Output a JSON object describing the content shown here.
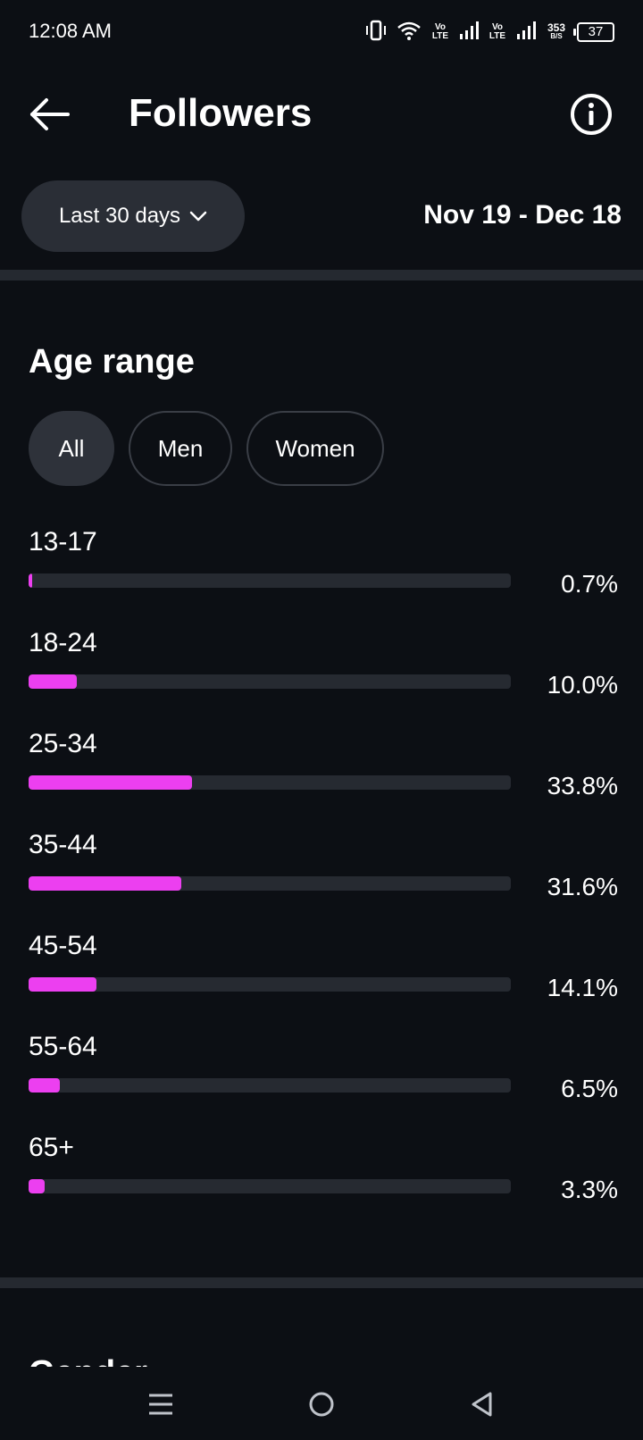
{
  "status_bar": {
    "time": "12:08 AM",
    "sim1_label": "Vo LTE",
    "sim2_label": "Vo LTE",
    "speed_value": "353",
    "speed_unit": "B/S",
    "battery": "37"
  },
  "header": {
    "title": "Followers",
    "back_icon": "arrow-left-icon",
    "info_icon": "info-icon"
  },
  "date_filter": {
    "selected": "Last 30 days",
    "range": "Nov 19 - Dec 18"
  },
  "age_section": {
    "title": "Age range",
    "filters": [
      {
        "label": "All",
        "active": true
      },
      {
        "label": "Men",
        "active": false
      },
      {
        "label": "Women",
        "active": false
      }
    ],
    "rows": [
      {
        "label": "13-17",
        "value": "0.7%",
        "percent": 0.7
      },
      {
        "label": "18-24",
        "value": "10.0%",
        "percent": 10.0
      },
      {
        "label": "25-34",
        "value": "33.8%",
        "percent": 33.8
      },
      {
        "label": "35-44",
        "value": "31.6%",
        "percent": 31.6
      },
      {
        "label": "45-54",
        "value": "14.1%",
        "percent": 14.1
      },
      {
        "label": "55-64",
        "value": "6.5%",
        "percent": 6.5
      },
      {
        "label": "65+",
        "value": "3.3%",
        "percent": 3.3
      }
    ]
  },
  "gender_section": {
    "title": "Gender"
  },
  "colors": {
    "background": "#0c0f14",
    "accent": "#ec3ff0",
    "track": "#262a31",
    "pill": "#2a2e36"
  },
  "nav": {
    "menu_icon": "menu-icon",
    "home_icon": "home-circle-icon",
    "back_icon": "triangle-back-icon"
  }
}
